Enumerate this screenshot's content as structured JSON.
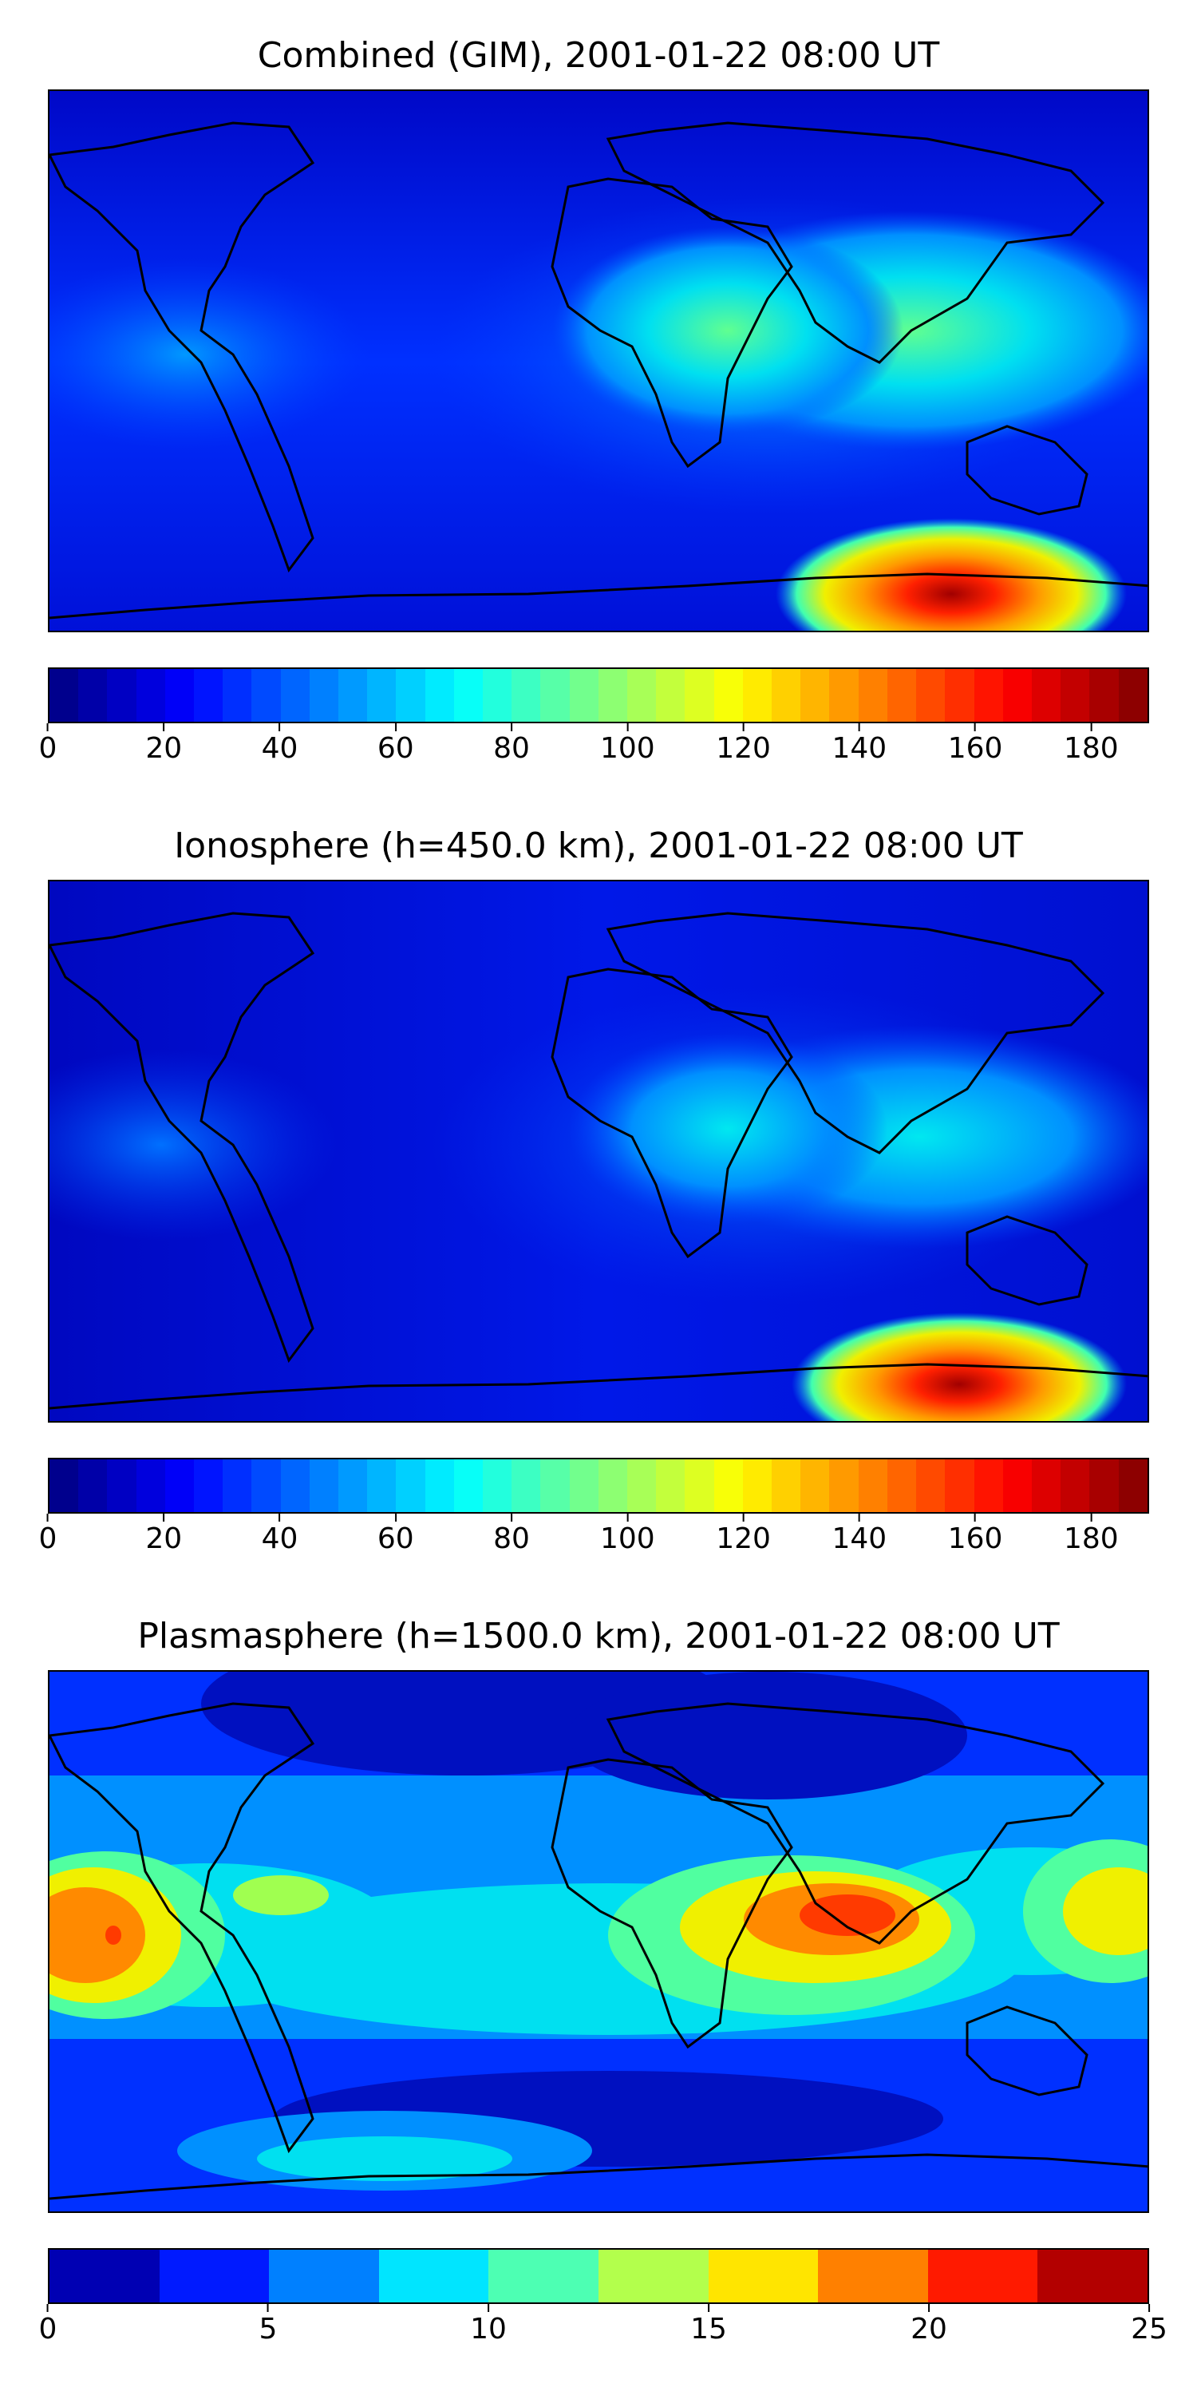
{
  "panels": [
    {
      "title": "Combined (GIM), 2001-01-22 08:00 UT",
      "colorbar": {
        "ticks": [
          "0",
          "20",
          "40",
          "60",
          "80",
          "100",
          "120",
          "140",
          "160",
          "180"
        ],
        "min": 0,
        "max": 190,
        "steps": 38
      }
    },
    {
      "title": "Ionosphere  (h=450.0 km), 2001-01-22 08:00 UT",
      "colorbar": {
        "ticks": [
          "0",
          "20",
          "40",
          "60",
          "80",
          "100",
          "120",
          "140",
          "160",
          "180"
        ],
        "min": 0,
        "max": 190,
        "steps": 38
      }
    },
    {
      "title": "Plasmasphere (h=1500.0 km), 2001-01-22 08:00 UT",
      "colorbar": {
        "ticks": [
          "0",
          "5",
          "10",
          "15",
          "20",
          "25"
        ],
        "min": 0,
        "max": 25,
        "steps": 10
      }
    }
  ],
  "colors": {
    "low": "#00008f",
    "mid": "#00e5f0",
    "high": "#7f0000"
  }
}
